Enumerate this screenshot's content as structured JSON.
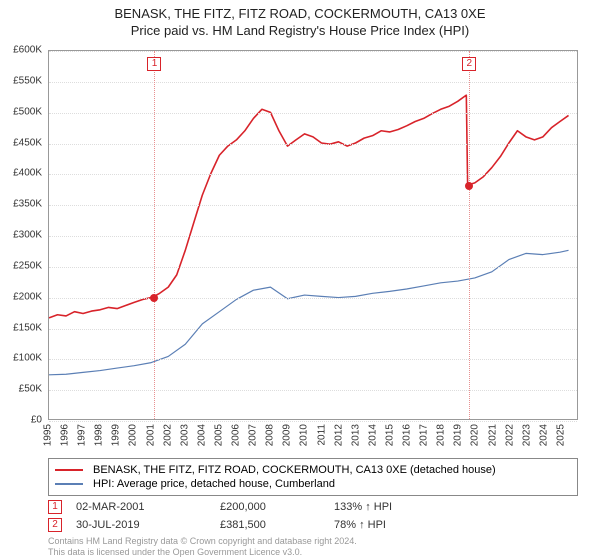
{
  "title_line1": "BENASK, THE FITZ, FITZ ROAD, COCKERMOUTH, CA13 0XE",
  "title_line2": "Price paid vs. HM Land Registry's House Price Index (HPI)",
  "chart": {
    "type": "line",
    "background_color": "#ffffff",
    "border_color": "#999999",
    "grid_color": "#dddddd",
    "x_min": 1995,
    "x_max": 2026,
    "y_min": 0,
    "y_max": 600000,
    "y_tick_step": 50000,
    "y_tick_labels": [
      "£0",
      "£50K",
      "£100K",
      "£150K",
      "£200K",
      "£250K",
      "£300K",
      "£350K",
      "£400K",
      "£450K",
      "£500K",
      "£550K",
      "£600K"
    ],
    "x_ticks": [
      1995,
      1996,
      1997,
      1998,
      1999,
      2000,
      2001,
      2002,
      2003,
      2004,
      2005,
      2006,
      2007,
      2008,
      2009,
      2010,
      2011,
      2012,
      2013,
      2014,
      2015,
      2016,
      2017,
      2018,
      2019,
      2020,
      2021,
      2022,
      2023,
      2024,
      2025
    ],
    "series": [
      {
        "name": "property",
        "label": "BENASK, THE FITZ, FITZ ROAD, COCKERMOUTH, CA13 0XE (detached house)",
        "color": "#d8232a",
        "line_width": 1.6,
        "points": [
          [
            1995.0,
            165000
          ],
          [
            1995.5,
            170000
          ],
          [
            1996.0,
            168000
          ],
          [
            1996.5,
            175000
          ],
          [
            1997.0,
            172000
          ],
          [
            1997.5,
            176000
          ],
          [
            1998.0,
            178000
          ],
          [
            1998.5,
            182000
          ],
          [
            1999.0,
            180000
          ],
          [
            1999.5,
            185000
          ],
          [
            2000.0,
            190000
          ],
          [
            2000.5,
            195000
          ],
          [
            2001.0,
            198000
          ],
          [
            2001.17,
            200000
          ],
          [
            2001.5,
            205000
          ],
          [
            2002.0,
            215000
          ],
          [
            2002.5,
            235000
          ],
          [
            2003.0,
            275000
          ],
          [
            2003.5,
            320000
          ],
          [
            2004.0,
            365000
          ],
          [
            2004.5,
            400000
          ],
          [
            2005.0,
            430000
          ],
          [
            2005.5,
            445000
          ],
          [
            2006.0,
            455000
          ],
          [
            2006.5,
            470000
          ],
          [
            2007.0,
            490000
          ],
          [
            2007.5,
            505000
          ],
          [
            2008.0,
            500000
          ],
          [
            2008.5,
            470000
          ],
          [
            2009.0,
            445000
          ],
          [
            2009.5,
            455000
          ],
          [
            2010.0,
            465000
          ],
          [
            2010.5,
            460000
          ],
          [
            2011.0,
            450000
          ],
          [
            2011.5,
            448000
          ],
          [
            2012.0,
            452000
          ],
          [
            2012.5,
            445000
          ],
          [
            2013.0,
            450000
          ],
          [
            2013.5,
            458000
          ],
          [
            2014.0,
            462000
          ],
          [
            2014.5,
            470000
          ],
          [
            2015.0,
            468000
          ],
          [
            2015.5,
            472000
          ],
          [
            2016.0,
            478000
          ],
          [
            2016.5,
            485000
          ],
          [
            2017.0,
            490000
          ],
          [
            2017.5,
            498000
          ],
          [
            2018.0,
            505000
          ],
          [
            2018.5,
            510000
          ],
          [
            2019.0,
            518000
          ],
          [
            2019.5,
            528000
          ],
          [
            2019.58,
            381500
          ],
          [
            2020.0,
            385000
          ],
          [
            2020.5,
            395000
          ],
          [
            2021.0,
            410000
          ],
          [
            2021.5,
            428000
          ],
          [
            2022.0,
            450000
          ],
          [
            2022.5,
            470000
          ],
          [
            2023.0,
            460000
          ],
          [
            2023.5,
            455000
          ],
          [
            2024.0,
            460000
          ],
          [
            2024.5,
            475000
          ],
          [
            2025.0,
            485000
          ],
          [
            2025.5,
            495000
          ]
        ]
      },
      {
        "name": "hpi",
        "label": "HPI: Average price, detached house, Cumberland",
        "color": "#5b7fb5",
        "line_width": 1.2,
        "points": [
          [
            1995.0,
            72000
          ],
          [
            1996.0,
            73000
          ],
          [
            1997.0,
            76000
          ],
          [
            1998.0,
            79000
          ],
          [
            1999.0,
            83000
          ],
          [
            2000.0,
            87000
          ],
          [
            2001.0,
            92000
          ],
          [
            2002.0,
            102000
          ],
          [
            2003.0,
            122000
          ],
          [
            2004.0,
            155000
          ],
          [
            2005.0,
            175000
          ],
          [
            2006.0,
            195000
          ],
          [
            2007.0,
            210000
          ],
          [
            2008.0,
            215000
          ],
          [
            2009.0,
            196000
          ],
          [
            2010.0,
            202000
          ],
          [
            2011.0,
            200000
          ],
          [
            2012.0,
            198000
          ],
          [
            2013.0,
            200000
          ],
          [
            2014.0,
            205000
          ],
          [
            2015.0,
            208000
          ],
          [
            2016.0,
            212000
          ],
          [
            2017.0,
            217000
          ],
          [
            2018.0,
            222000
          ],
          [
            2019.0,
            225000
          ],
          [
            2020.0,
            230000
          ],
          [
            2021.0,
            240000
          ],
          [
            2022.0,
            260000
          ],
          [
            2023.0,
            270000
          ],
          [
            2024.0,
            268000
          ],
          [
            2025.0,
            272000
          ],
          [
            2025.5,
            275000
          ]
        ]
      }
    ],
    "sale_markers": [
      {
        "idx": "1",
        "x": 2001.17,
        "y": 200000,
        "line_color": "#e89090",
        "box_color": "#d8232a"
      },
      {
        "idx": "2",
        "x": 2019.58,
        "y": 381500,
        "line_color": "#e89090",
        "box_color": "#d8232a"
      }
    ]
  },
  "legend": {
    "border_color": "#888888",
    "rows": [
      {
        "color": "#d8232a",
        "label": "BENASK, THE FITZ, FITZ ROAD, COCKERMOUTH, CA13 0XE (detached house)"
      },
      {
        "color": "#5b7fb5",
        "label": "HPI: Average price, detached house, Cumberland"
      }
    ]
  },
  "sales": [
    {
      "idx": "1",
      "box_color": "#d8232a",
      "date": "02-MAR-2001",
      "price": "£200,000",
      "pct": "133% ↑ HPI"
    },
    {
      "idx": "2",
      "box_color": "#d8232a",
      "date": "30-JUL-2019",
      "price": "£381,500",
      "pct": "78% ↑ HPI"
    }
  ],
  "footer_line1": "Contains HM Land Registry data © Crown copyright and database right 2024.",
  "footer_line2": "This data is licensed under the Open Government Licence v3.0."
}
